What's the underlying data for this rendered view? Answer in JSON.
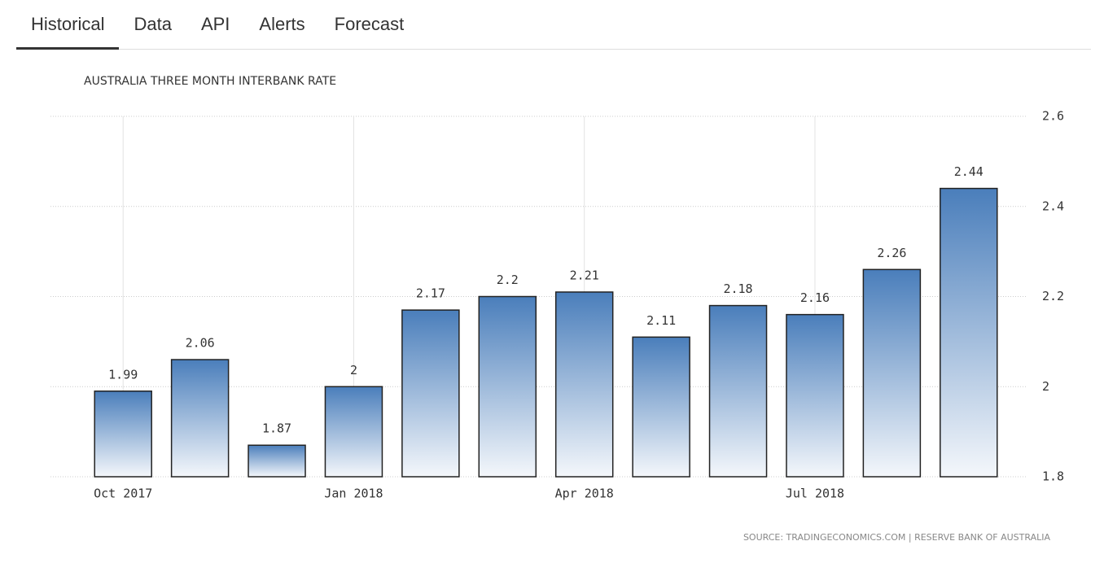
{
  "tabs": [
    "Historical",
    "Data",
    "API",
    "Alerts",
    "Forecast"
  ],
  "chart_data": {
    "type": "bar",
    "title": "AUSTRALIA THREE MONTH INTERBANK RATE",
    "categories": [
      "Oct 2017",
      null,
      null,
      "Jan 2018",
      null,
      null,
      "Apr 2018",
      null,
      null,
      "Jul 2018",
      null,
      null
    ],
    "values": [
      1.99,
      2.06,
      1.87,
      2,
      2.17,
      2.2,
      2.21,
      2.11,
      2.18,
      2.16,
      2.26,
      2.44
    ],
    "color": "#4a7ebb",
    "ylim": [
      1.8,
      2.6
    ],
    "yticks": [
      1.8,
      2,
      2.2,
      2.4,
      2.6
    ],
    "grid": true,
    "source": "SOURCE: TRADINGECONOMICS.COM | RESERVE BANK OF AUSTRALIA"
  }
}
